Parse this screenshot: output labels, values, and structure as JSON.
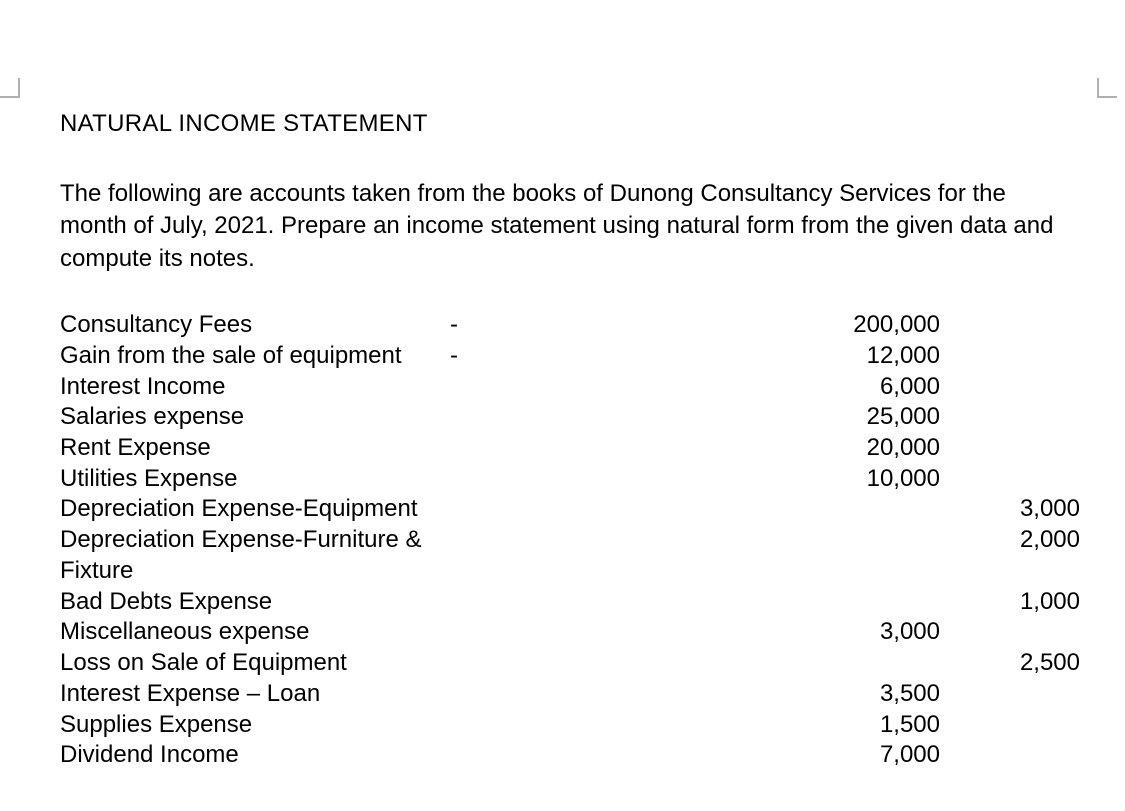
{
  "title": "NATURAL INCOME STATEMENT",
  "intro": "The following are accounts taken from the books of Dunong Consultancy Services for the month of July, 2021.  Prepare an income statement using natural form from the given data and compute its notes.",
  "accounts": [
    {
      "label": "Consultancy Fees",
      "dash": "-",
      "val1": "200,000",
      "val2": ""
    },
    {
      "label": "Gain from the sale of equipment",
      "dash": "-",
      "val1": "12,000",
      "val2": ""
    },
    {
      "label": "Interest Income",
      "dash": "",
      "val1": "6,000",
      "val2": ""
    },
    {
      "label": "Salaries expense",
      "dash": "",
      "val1": "25,000",
      "val2": ""
    },
    {
      "label": "Rent Expense",
      "dash": "",
      "val1": "20,000",
      "val2": ""
    },
    {
      "label": "Utilities Expense",
      "dash": "",
      "val1": "10,000",
      "val2": ""
    },
    {
      "label": "Depreciation Expense-Equipment",
      "dash": "",
      "val1": "",
      "val2": "3,000"
    },
    {
      "label": "Depreciation Expense-Furniture & Fixture",
      "dash": "",
      "val1": "",
      "val2": "2,000"
    },
    {
      "label": "Bad Debts Expense",
      "dash": "",
      "val1": "",
      "val2": "1,000"
    },
    {
      "label": "Miscellaneous expense",
      "dash": "",
      "val1": "3,000",
      "val2": ""
    },
    {
      "label": "Loss on Sale of Equipment",
      "dash": "",
      "val1": "",
      "val2": "2,500"
    },
    {
      "label": "Interest Expense – Loan",
      "dash": "",
      "val1": "3,500",
      "val2": ""
    },
    {
      "label": "Supplies Expense",
      "dash": "",
      "val1": "1,500",
      "val2": ""
    },
    {
      "label": "Dividend Income",
      "dash": "",
      "val1": "7,000",
      "val2": ""
    }
  ],
  "colors": {
    "background": "#ffffff",
    "text": "#000000"
  },
  "typography": {
    "font_family": "Arial",
    "title_size_pt": 18,
    "body_size_pt": 18
  }
}
